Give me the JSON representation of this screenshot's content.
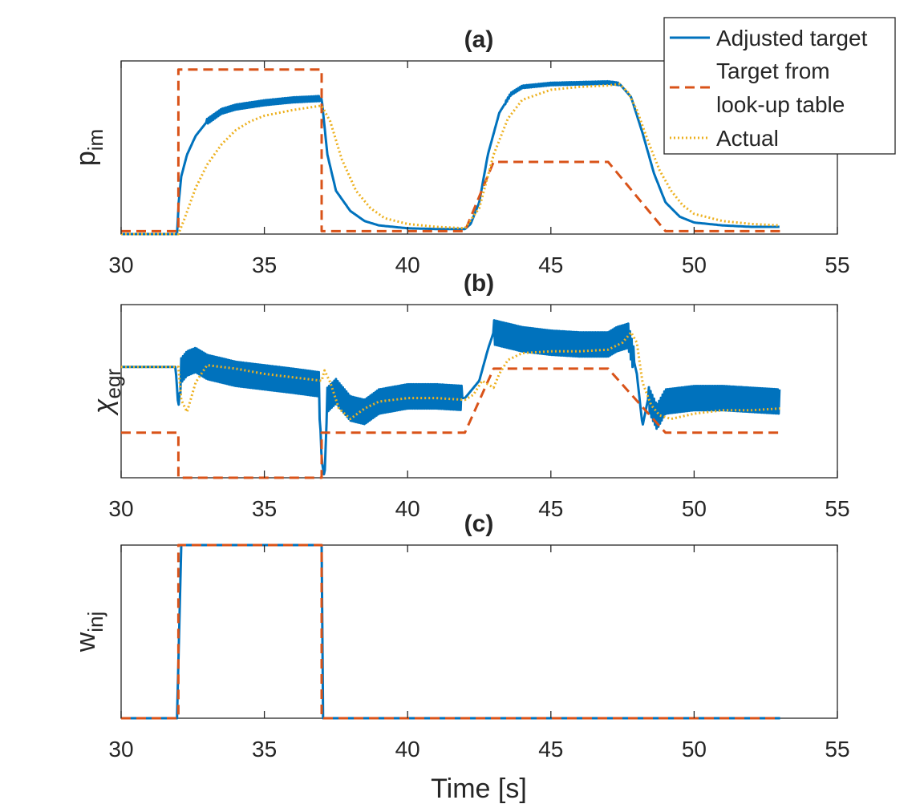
{
  "chart_data": [
    {
      "type": "line",
      "panel_id": "a",
      "title": "(a)",
      "ylabel_main": "p",
      "ylabel_sub": "im",
      "xlabel": "",
      "xlim": [
        30,
        55
      ],
      "ylim": [
        0,
        1.2
      ],
      "xticks": [
        "30",
        "35",
        "40",
        "45",
        "50",
        "55"
      ],
      "yticks": [],
      "series": [
        {
          "name": "Adjusted target",
          "style": "solid",
          "color": "#0072BD",
          "ripple": 0.035,
          "x": [
            30,
            31.96,
            32.0,
            32.1,
            32.3,
            32.6,
            33,
            33.5,
            34,
            35,
            36,
            37.0,
            37.2,
            37.5,
            38,
            38.5,
            39,
            40,
            41,
            42,
            42.2,
            42.5,
            42.8,
            43.2,
            43.6,
            44,
            45,
            46,
            47,
            47.4,
            47.8,
            48.2,
            48.6,
            49,
            49.5,
            50,
            51,
            52,
            53
          ],
          "y": [
            0.0,
            0.0,
            0.2,
            0.4,
            0.55,
            0.68,
            0.78,
            0.85,
            0.88,
            0.91,
            0.93,
            0.94,
            0.55,
            0.3,
            0.16,
            0.09,
            0.06,
            0.04,
            0.035,
            0.035,
            0.07,
            0.22,
            0.55,
            0.84,
            0.97,
            1.02,
            1.04,
            1.045,
            1.05,
            1.04,
            0.95,
            0.7,
            0.42,
            0.22,
            0.12,
            0.08,
            0.06,
            0.05,
            0.05
          ]
        },
        {
          "name": "Target from look-up table",
          "style": "dashed",
          "color": "#D95319",
          "x": [
            30,
            32.0,
            32.0,
            37.0,
            37.0,
            42.0,
            43.0,
            47.0,
            49.0,
            53.0
          ],
          "y": [
            0.02,
            0.02,
            1.14,
            1.14,
            0.02,
            0.02,
            0.5,
            0.5,
            0.02,
            0.02
          ]
        },
        {
          "name": "Actual",
          "style": "dotted",
          "color": "#EDB120",
          "x": [
            30,
            32.0,
            32.2,
            32.6,
            33,
            33.5,
            34,
            34.5,
            35,
            36,
            37.0,
            37.3,
            37.7,
            38.2,
            38.7,
            39.2,
            40,
            41,
            42,
            42.5,
            43.0,
            43.5,
            44,
            45,
            46,
            47,
            47.4,
            47.7,
            48,
            48.4,
            48.8,
            49.2,
            49.6,
            50,
            51,
            52,
            53
          ],
          "y": [
            0.0,
            0.0,
            0.1,
            0.32,
            0.48,
            0.62,
            0.72,
            0.78,
            0.82,
            0.86,
            0.89,
            0.78,
            0.52,
            0.3,
            0.18,
            0.11,
            0.07,
            0.05,
            0.04,
            0.18,
            0.55,
            0.8,
            0.93,
            1.0,
            1.02,
            1.03,
            1.04,
            0.98,
            0.86,
            0.64,
            0.44,
            0.3,
            0.2,
            0.14,
            0.09,
            0.07,
            0.06
          ]
        }
      ]
    },
    {
      "type": "line",
      "panel_id": "b",
      "title": "(b)",
      "ylabel_main": "χ",
      "ylabel_sub": "egr",
      "xlabel": "",
      "xlim": [
        30,
        55
      ],
      "ylim": [
        0,
        1.0
      ],
      "xticks": [
        "30",
        "35",
        "40",
        "45",
        "50",
        "55"
      ],
      "yticks": [],
      "series": [
        {
          "name": "Adjusted target",
          "style": "solid",
          "color": "#0072BD",
          "ripple": 0.14,
          "x": [
            30,
            31.9,
            32.0,
            32.1,
            32.3,
            32.6,
            33,
            34,
            35,
            36,
            36.9,
            37.0,
            37.1,
            37.2,
            37.5,
            38,
            38.5,
            39,
            40,
            41,
            42,
            42.2,
            42.5,
            42.8,
            43.0,
            43.5,
            44,
            45,
            46,
            47,
            47.3,
            47.7,
            48.0,
            48.2,
            48.4,
            48.7,
            49,
            50,
            51,
            52,
            53
          ],
          "y": [
            0.64,
            0.64,
            0.4,
            0.62,
            0.66,
            0.68,
            0.64,
            0.6,
            0.58,
            0.56,
            0.54,
            0.1,
            0.0,
            0.45,
            0.5,
            0.4,
            0.38,
            0.44,
            0.47,
            0.47,
            0.46,
            0.5,
            0.56,
            0.74,
            0.84,
            0.82,
            0.8,
            0.78,
            0.77,
            0.77,
            0.8,
            0.82,
            0.6,
            0.3,
            0.46,
            0.35,
            0.44,
            0.46,
            0.46,
            0.45,
            0.44
          ]
        },
        {
          "name": "Target from look-up table",
          "style": "dashed",
          "color": "#D95319",
          "x": [
            30,
            32.0,
            32.0,
            37.0,
            37.0,
            42.0,
            43.0,
            47.0,
            49.0,
            53.0
          ],
          "y": [
            0.26,
            0.26,
            0.0,
            0.0,
            0.26,
            0.26,
            0.63,
            0.63,
            0.26,
            0.26
          ]
        },
        {
          "name": "Actual",
          "style": "dotted",
          "color": "#EDB120",
          "x": [
            30,
            32.0,
            32.1,
            32.3,
            32.6,
            33,
            34,
            35,
            36,
            37.0,
            37.1,
            37.3,
            37.6,
            38,
            38.5,
            39,
            40,
            41,
            42,
            42.3,
            42.6,
            43.0,
            43.2,
            43.5,
            44,
            45,
            46,
            47,
            47.5,
            47.8,
            48.0,
            48.2,
            48.5,
            48.8,
            49.2,
            50,
            51,
            52,
            53
          ],
          "y": [
            0.64,
            0.64,
            0.45,
            0.38,
            0.55,
            0.65,
            0.63,
            0.6,
            0.58,
            0.56,
            0.62,
            0.55,
            0.4,
            0.34,
            0.4,
            0.44,
            0.46,
            0.46,
            0.45,
            0.48,
            0.56,
            0.52,
            0.6,
            0.68,
            0.72,
            0.73,
            0.73,
            0.74,
            0.78,
            0.84,
            0.78,
            0.55,
            0.42,
            0.36,
            0.34,
            0.37,
            0.39,
            0.39,
            0.4
          ]
        }
      ]
    },
    {
      "type": "line",
      "panel_id": "c",
      "title": "(c)",
      "ylabel_main": "w",
      "ylabel_sub": "inj",
      "xlabel": "Time [s]",
      "xlim": [
        30,
        55
      ],
      "ylim": [
        0,
        1.0
      ],
      "xticks": [
        "30",
        "35",
        "40",
        "45",
        "50",
        "55"
      ],
      "yticks": [],
      "series": [
        {
          "name": "Adjusted target",
          "style": "solid",
          "color": "#0072BD",
          "x": [
            30,
            31.95,
            32.1,
            37.0,
            37.05,
            53.0
          ],
          "y": [
            0.0,
            0.0,
            1.0,
            1.0,
            0.0,
            0.0
          ]
        },
        {
          "name": "Target from look-up table",
          "style": "dashed",
          "color": "#D95319",
          "x": [
            30,
            32.0,
            32.0,
            37.0,
            37.0,
            53.0
          ],
          "y": [
            0.0,
            0.0,
            1.0,
            1.0,
            0.0,
            0.0
          ]
        }
      ]
    }
  ],
  "legend": {
    "position": "top-right",
    "entries": [
      {
        "lines": [
          "Adjusted target"
        ],
        "style": "solid",
        "color": "#0072BD"
      },
      {
        "lines": [
          "Target from",
          "look-up table"
        ],
        "style": "dashed",
        "color": "#D95319"
      },
      {
        "lines": [
          "Actual"
        ],
        "style": "dotted",
        "color": "#EDB120"
      }
    ]
  }
}
